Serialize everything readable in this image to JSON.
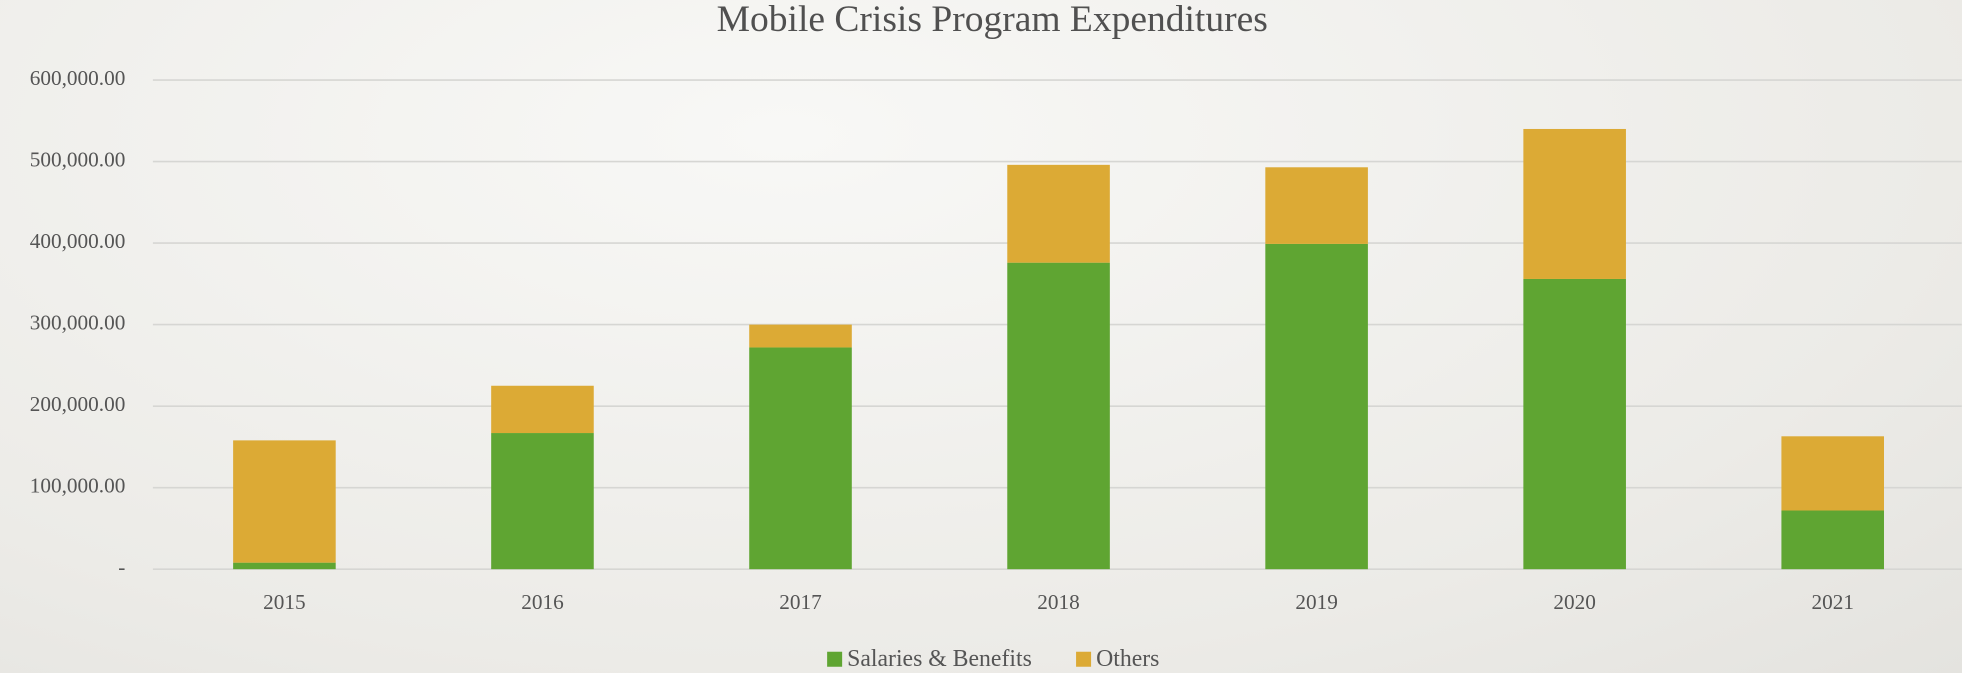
{
  "chart_data": {
    "type": "stacked_bar",
    "title": "Mobile Crisis Program Expenditures",
    "categories": [
      "2015",
      "2016",
      "2017",
      "2018",
      "2019",
      "2020",
      "2021"
    ],
    "series": [
      {
        "name": "Salaries & Benefits",
        "color": "#5fa532",
        "values": [
          8000,
          167000,
          272000,
          376000,
          399000,
          356000,
          72000
        ]
      },
      {
        "name": "Others",
        "color": "#dcaa35",
        "values": [
          150000,
          58000,
          28000,
          120000,
          94000,
          184000,
          91000
        ]
      }
    ],
    "ylim": [
      0,
      600000
    ],
    "yticks": [
      {
        "value": 0,
        "label": "-"
      },
      {
        "value": 100000,
        "label": "100,000.00"
      },
      {
        "value": 200000,
        "label": "200,000.00"
      },
      {
        "value": 300000,
        "label": "300,000.00"
      },
      {
        "value": 400000,
        "label": "400,000.00"
      },
      {
        "value": 500000,
        "label": "500,000.00"
      },
      {
        "value": 600000,
        "label": "600,000.00"
      }
    ],
    "grid": true,
    "legend": "bottom"
  }
}
